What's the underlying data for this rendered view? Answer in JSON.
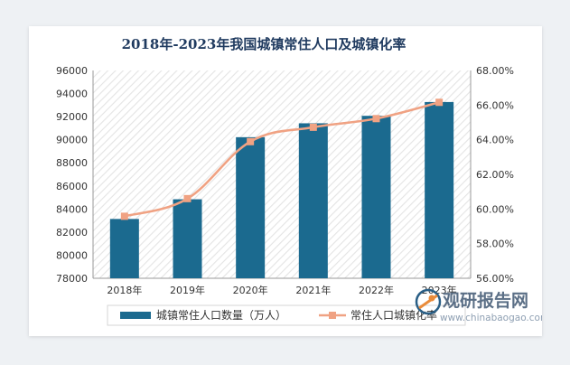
{
  "chart_data": {
    "type": "bar+line",
    "title": "2018年-2023年我国城镇常住人口及城镇化率",
    "categories": [
      "2018年",
      "2019年",
      "2020年",
      "2021年",
      "2022年",
      "2023年"
    ],
    "series": [
      {
        "name": "城镇常住人口数量（万人）",
        "type": "bar",
        "axis": "left",
        "values": [
          83137,
          84843,
          90220,
          91425,
          92071,
          93267
        ],
        "color": "#1b6a8f"
      },
      {
        "name": "常住人口城镇化率",
        "type": "line",
        "axis": "right",
        "values": [
          59.58,
          60.6,
          63.89,
          64.72,
          65.22,
          66.16
        ],
        "color": "#f0a283"
      }
    ],
    "y_left": {
      "min": 78000,
      "max": 96000,
      "step": 2000,
      "ticks": [
        "78000",
        "80000",
        "82000",
        "84000",
        "86000",
        "88000",
        "90000",
        "92000",
        "94000",
        "96000"
      ]
    },
    "y_right": {
      "min": 56,
      "max": 68,
      "step": 2,
      "ticks": [
        "56.00%",
        "58.00%",
        "60.00%",
        "62.00%",
        "64.00%",
        "66.00%",
        "68.00%"
      ]
    },
    "legend_position": "bottom",
    "grid": false
  },
  "watermark": {
    "cn": "观研报告网",
    "en": "www.chinabaogao.com"
  }
}
